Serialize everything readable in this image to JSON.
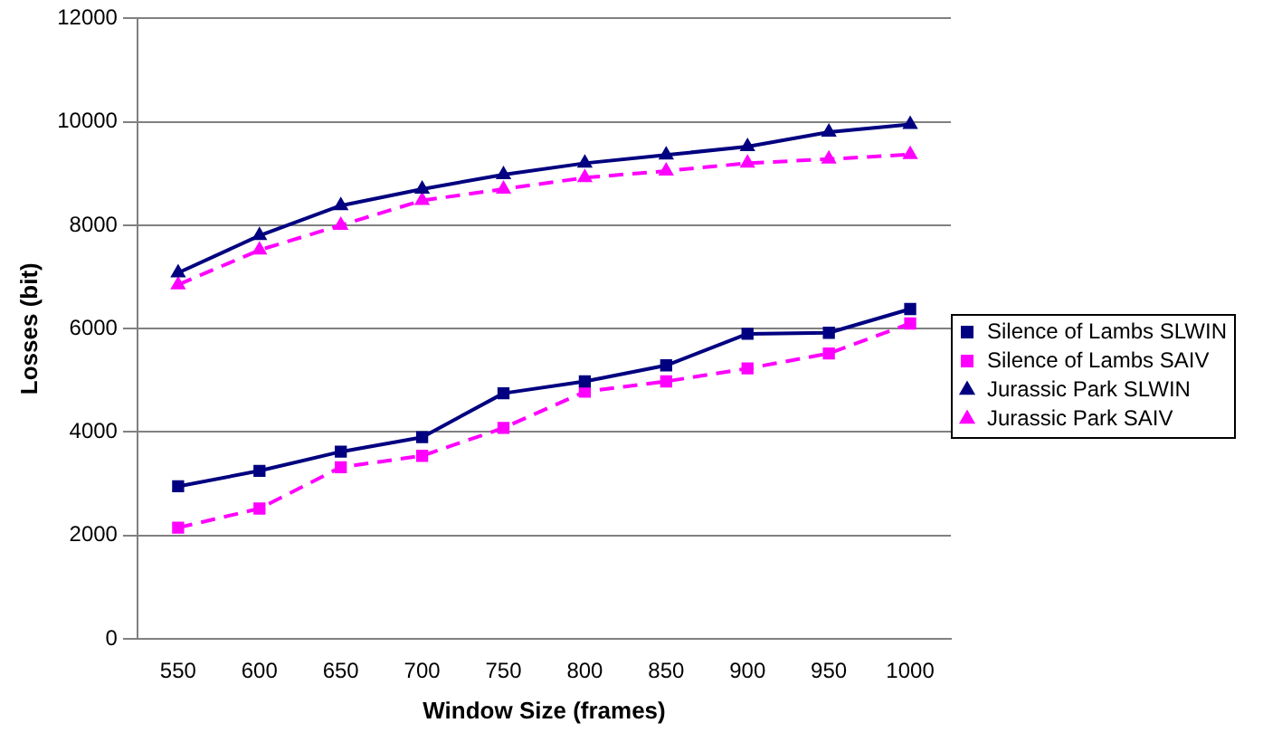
{
  "chart_data": {
    "type": "line",
    "xlabel": "Window Size (frames)",
    "ylabel": "Losses (bit)",
    "categories": [
      "550",
      "600",
      "650",
      "700",
      "750",
      "800",
      "850",
      "900",
      "950",
      "1000"
    ],
    "ylim": [
      0,
      12000
    ],
    "yticks": [
      0,
      2000,
      4000,
      6000,
      8000,
      10000,
      12000
    ],
    "grid": "y",
    "legend": "right",
    "series": [
      {
        "name": "Silence of Lambs SLWIN",
        "color": "#000080",
        "marker": "square",
        "line_style": "solid",
        "values": [
          2950,
          3250,
          3620,
          3900,
          4750,
          4980,
          5290,
          5900,
          5920,
          6380
        ]
      },
      {
        "name": "Silence of Lambs SAIV",
        "color": "#ff00ff",
        "marker": "square",
        "line_style": "dashed",
        "values": [
          2150,
          2520,
          3320,
          3540,
          4080,
          4780,
          4980,
          5230,
          5520,
          6100
        ]
      },
      {
        "name": "Jurassic Park SLWIN",
        "color": "#000080",
        "marker": "triangle",
        "line_style": "solid",
        "values": [
          7080,
          7800,
          8380,
          8700,
          8980,
          9200,
          9360,
          9520,
          9800,
          9950
        ]
      },
      {
        "name": "Jurassic Park SAIV",
        "color": "#ff00ff",
        "marker": "triangle",
        "line_style": "dashed",
        "values": [
          6850,
          7520,
          8000,
          8480,
          8700,
          8920,
          9050,
          9200,
          9280,
          9370
        ]
      }
    ]
  }
}
